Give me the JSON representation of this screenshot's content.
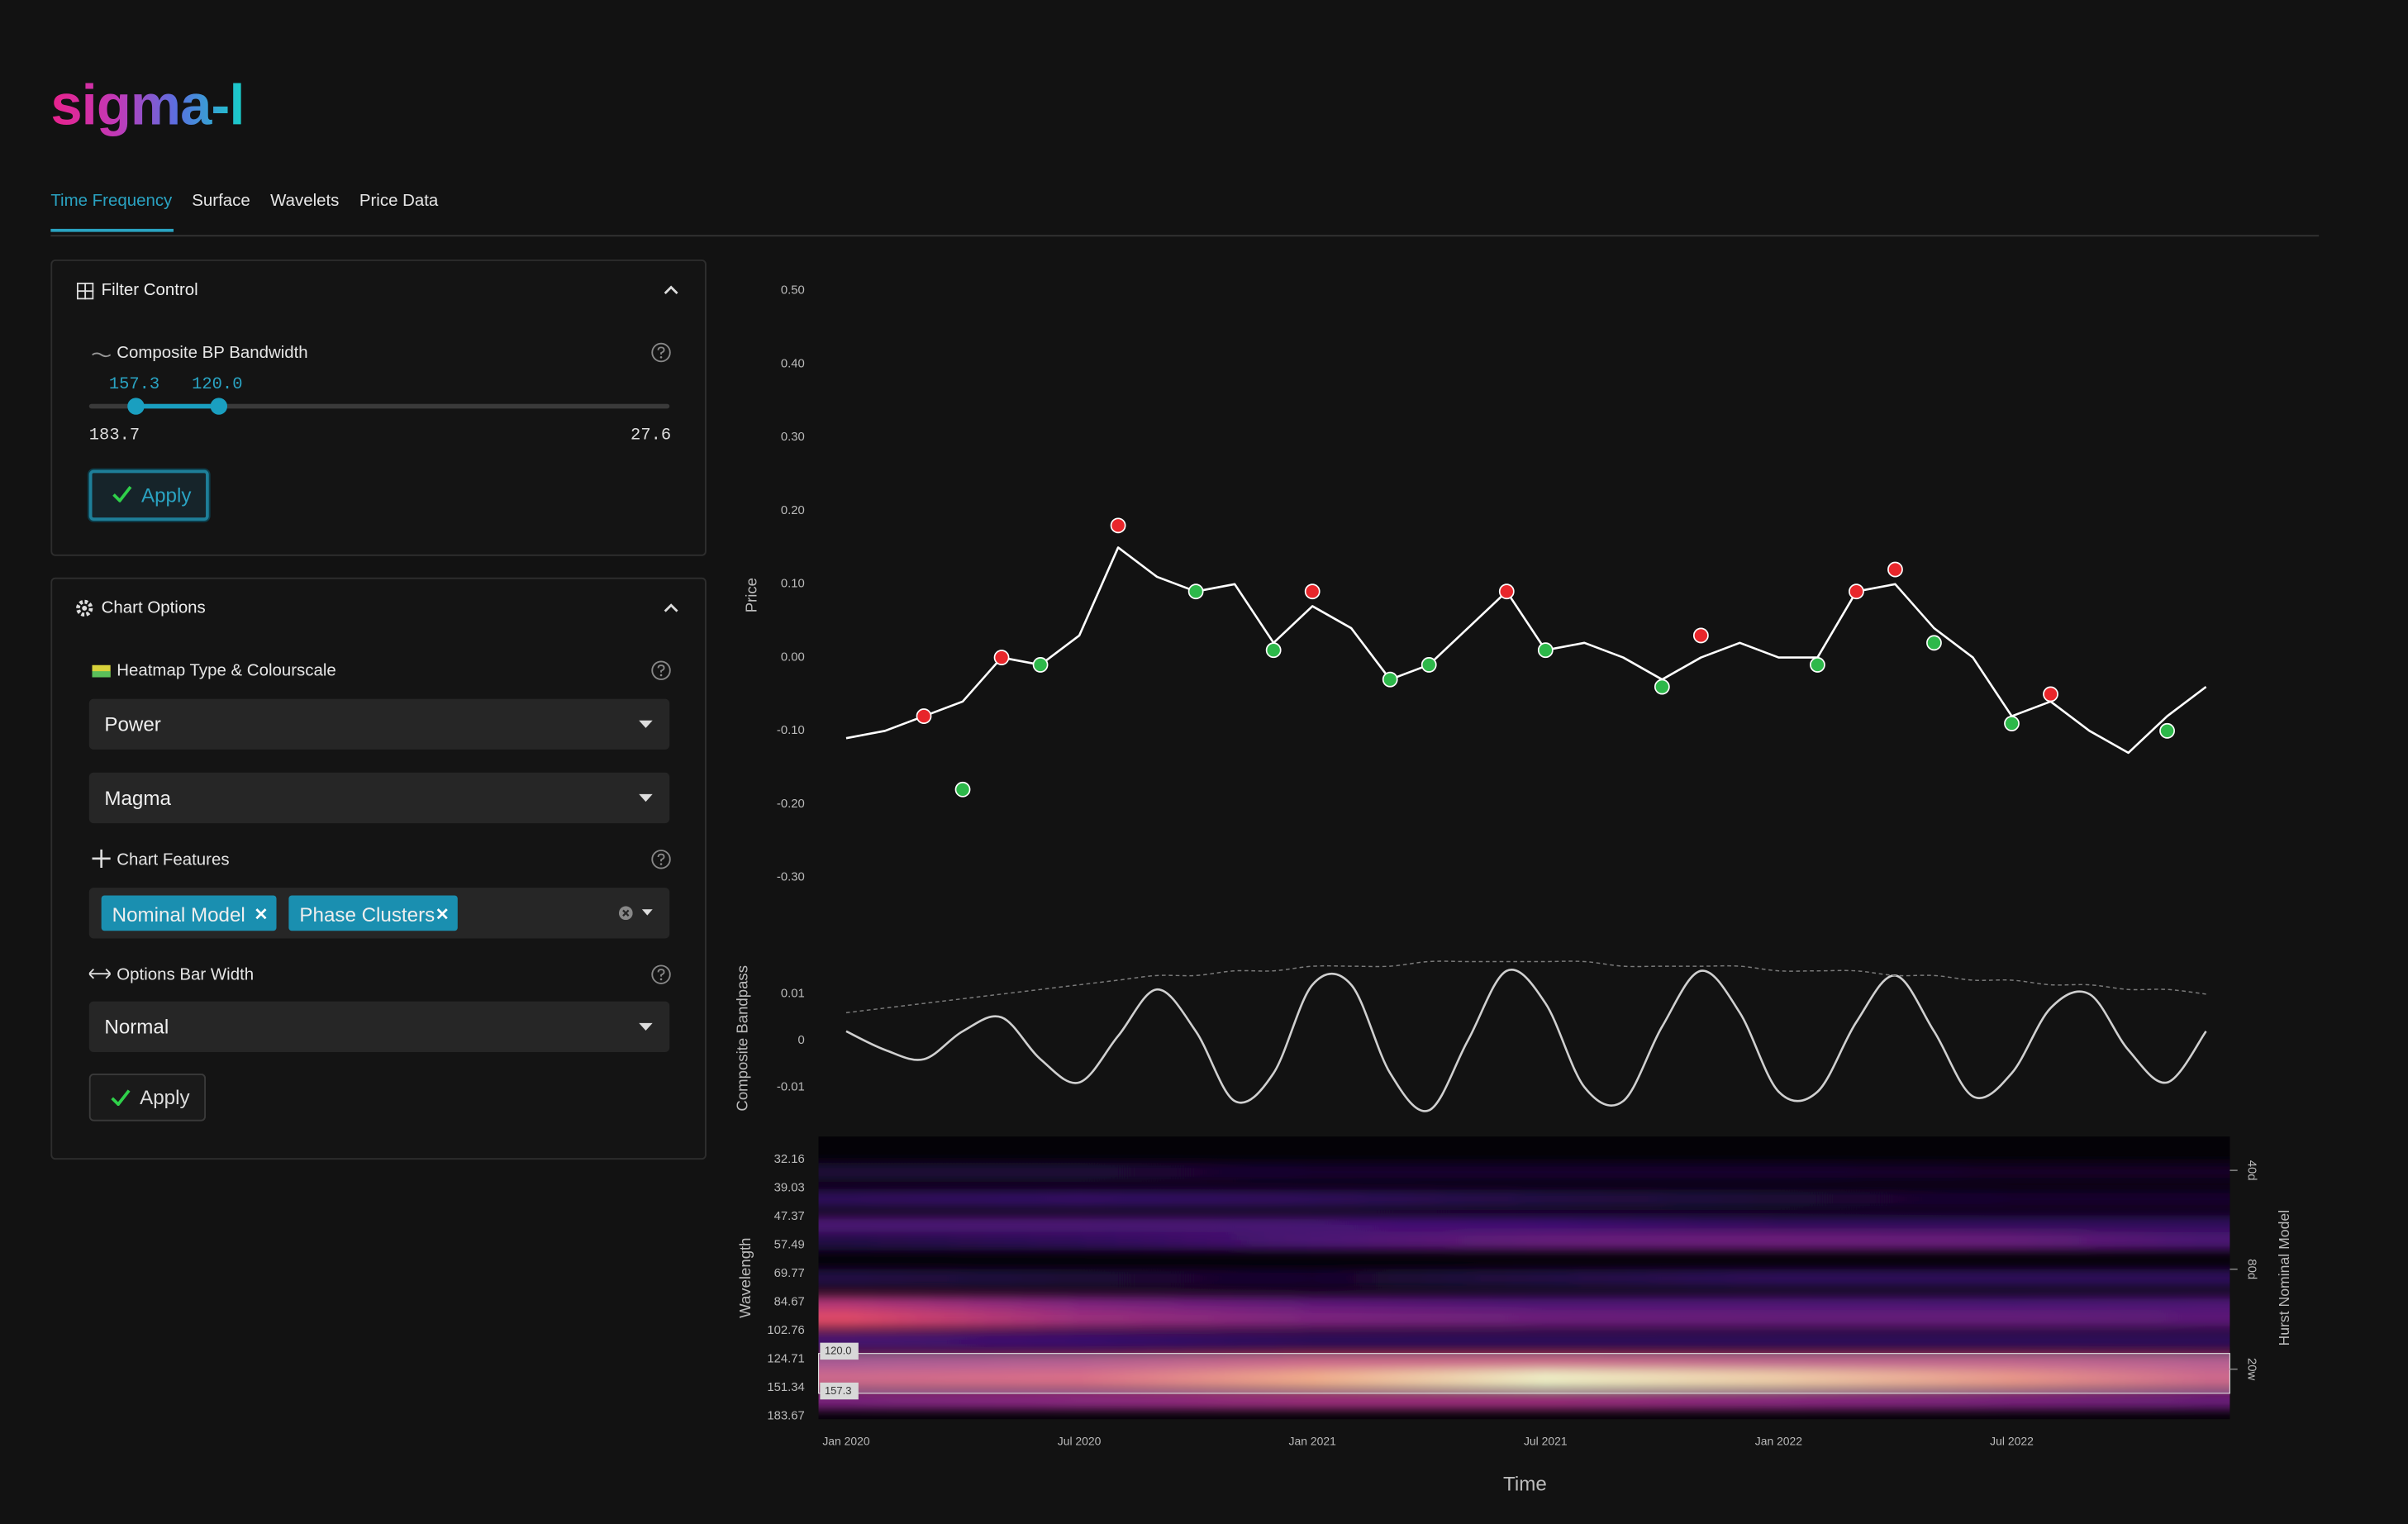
{
  "app": {
    "logo": "sigma-l",
    "tabs": [
      "Time Frequency",
      "Surface",
      "Wavelets",
      "Price Data"
    ],
    "active_tab": 0
  },
  "filter_control": {
    "title": "Filter Control",
    "field": "Composite BP Bandwidth",
    "range": [
      183.7,
      27.6
    ],
    "log_scale": true,
    "selected": [
      {
        "value": 157.3,
        "label": "157.3"
      },
      {
        "value": 120,
        "label": "120.0"
      }
    ],
    "button": "Apply"
  },
  "chart_options": {
    "title": "Chart Options",
    "heatmap_label": "Heatmap Type & Colourscale",
    "heatmap_type": "Power",
    "colourscale": "Magma",
    "features_label": "Chart Features",
    "features": [
      "Nominal Model",
      "Phase Clusters"
    ],
    "bar_width_label": "Options Bar Width",
    "bar_width": "Normal",
    "button": "Apply"
  },
  "chart_data": [
    {
      "type": "line",
      "ylabel": "Price",
      "x": [
        "2020-01",
        "2020-02",
        "2020-03",
        "2020-04",
        "2020-05",
        "2020-06",
        "2020-07",
        "2020-08",
        "2020-09",
        "2020-10",
        "2020-11",
        "2020-12",
        "2021-01",
        "2021-02",
        "2021-03",
        "2021-04",
        "2021-05",
        "2021-06",
        "2021-07",
        "2021-08",
        "2021-09",
        "2021-10",
        "2021-11",
        "2021-12",
        "2022-01",
        "2022-02",
        "2022-03",
        "2022-04",
        "2022-05",
        "2022-06",
        "2022-07",
        "2022-08",
        "2022-09",
        "2022-10",
        "2022-11",
        "2022-12"
      ],
      "values": [
        -0.11,
        -0.1,
        -0.08,
        -0.06,
        0.0,
        -0.01,
        0.03,
        0.15,
        0.11,
        0.09,
        0.1,
        0.02,
        0.07,
        0.04,
        -0.03,
        -0.01,
        0.04,
        0.09,
        0.01,
        0.02,
        0.0,
        -0.03,
        0.0,
        0.02,
        0.0,
        0.0,
        0.09,
        0.1,
        0.04,
        0.0,
        -0.08,
        -0.06,
        -0.1,
        -0.13,
        -0.08,
        -0.04
      ],
      "color": "#ffffff",
      "ylim": [
        -0.36,
        0.53
      ],
      "yticks": [
        {
          "value": 0.5,
          "label": "0.50"
        },
        {
          "value": 0.4,
          "label": "0.40"
        },
        {
          "value": 0.3,
          "label": "0.30"
        },
        {
          "value": 0.2,
          "label": "0.20"
        },
        {
          "value": 0.1,
          "label": "0.10"
        },
        {
          "value": 0,
          "label": "0.00"
        },
        {
          "value": -0.1,
          "label": "-0.10"
        },
        {
          "value": -0.2,
          "label": "-0.20"
        },
        {
          "value": -0.3,
          "label": "-0.30"
        }
      ],
      "peaks": {
        "x": [
          "2020-03",
          "2020-05",
          "2020-08",
          "2021-01",
          "2021-06",
          "2021-11",
          "2022-03",
          "2022-04",
          "2022-08"
        ],
        "values": [
          -0.08,
          0.0,
          0.18,
          0.09,
          0.09,
          0.03,
          0.09,
          0.12,
          -0.05
        ],
        "color": "#e8262b"
      },
      "troughs": {
        "x": [
          "2020-04",
          "2020-06",
          "2020-10",
          "2020-12",
          "2021-03",
          "2021-04",
          "2021-07",
          "2021-10",
          "2022-02",
          "2022-05",
          "2022-07",
          "2022-11"
        ],
        "values": [
          -0.18,
          -0.01,
          0.09,
          0.01,
          -0.03,
          -0.01,
          0.01,
          -0.04,
          -0.01,
          0.02,
          -0.09,
          -0.1
        ],
        "color": "#2db84a"
      }
    },
    {
      "type": "line",
      "ylabel": "Composite Bandpass",
      "smooth": true,
      "x": [
        "2020-01",
        "2020-02",
        "2020-03",
        "2020-04",
        "2020-05",
        "2020-06",
        "2020-07",
        "2020-08",
        "2020-09",
        "2020-10",
        "2020-11",
        "2020-12",
        "2021-01",
        "2021-02",
        "2021-03",
        "2021-04",
        "2021-05",
        "2021-06",
        "2021-07",
        "2021-08",
        "2021-09",
        "2021-10",
        "2021-11",
        "2021-12",
        "2022-01",
        "2022-02",
        "2022-03",
        "2022-04",
        "2022-05",
        "2022-06",
        "2022-07",
        "2022-08",
        "2022-09",
        "2022-10",
        "2022-11",
        "2022-12"
      ],
      "series": [
        {
          "color": "#d0d0d0",
          "values": [
            0.002,
            -0.002,
            -0.004,
            0.002,
            0.005,
            -0.004,
            -0.009,
            0.001,
            0.011,
            0.002,
            -0.013,
            -0.007,
            0.012,
            0.012,
            -0.007,
            -0.015,
            0,
            0.015,
            0.008,
            -0.01,
            -0.013,
            0.003,
            0.015,
            0.006,
            -0.011,
            -0.011,
            0.004,
            0.014,
            0.002,
            -0.012,
            -0.007,
            0.007,
            0.01,
            -0.002,
            -0.009,
            0.002
          ]
        },
        {
          "color": "#7a7a7a",
          "dashed": true,
          "values": [
            0.006,
            0.007,
            0.008,
            0.009,
            0.01,
            0.011,
            0.012,
            0.013,
            0.014,
            0.014,
            0.015,
            0.015,
            0.016,
            0.016,
            0.016,
            0.017,
            0.017,
            0.017,
            0.017,
            0.017,
            0.016,
            0.016,
            0.016,
            0.016,
            0.015,
            0.015,
            0.015,
            0.014,
            0.014,
            0.013,
            0.013,
            0.012,
            0.012,
            0.011,
            0.011,
            0.01
          ]
        }
      ],
      "ylim": [
        -0.018,
        0.019
      ],
      "yticks": [
        0.01,
        0,
        -0.01
      ]
    },
    {
      "type": "heatmap",
      "ylabel": "Wavelength",
      "xlabel": "Time",
      "colorscale": "magma",
      "x": [
        "2020-01",
        "2020-07",
        "2021-01",
        "2021-07",
        "2022-01",
        "2022-07",
        "2022-12"
      ],
      "xticks": [
        {
          "value": "2020-01",
          "label": "Jan 2020"
        },
        {
          "value": "2020-07",
          "label": "Jul 2020"
        },
        {
          "value": "2021-01",
          "label": "Jan 2021"
        },
        {
          "value": "2021-07",
          "label": "Jul 2021"
        },
        {
          "value": "2022-01",
          "label": "Jan 2022"
        },
        {
          "value": "2022-07",
          "label": "Jul 2022"
        }
      ],
      "ylim": [
        27.5,
        187.5
      ],
      "log_y": true,
      "y_reversed": true,
      "yticks": [
        32.16,
        39.03,
        47.37,
        57.49,
        69.77,
        84.67,
        102.76,
        124.71,
        151.34,
        183.67
      ],
      "bands": [
        {
          "wavelength": 35,
          "power": [
            0.12,
            0.12,
            0.1,
            0.1,
            0.1,
            0.08,
            0.08
          ]
        },
        {
          "wavelength": 42,
          "power": [
            0.2,
            0.22,
            0.2,
            0.15,
            0.12,
            0.1,
            0.1
          ]
        },
        {
          "wavelength": 50,
          "power": [
            0.3,
            0.3,
            0.28,
            0.25,
            0.2,
            0.2,
            0.2
          ]
        },
        {
          "wavelength": 56,
          "power": [
            0.15,
            0.2,
            0.3,
            0.38,
            0.4,
            0.38,
            0.3
          ]
        },
        {
          "wavelength": 72,
          "power": [
            0.15,
            0.12,
            0.1,
            0.15,
            0.2,
            0.2,
            0.2
          ]
        },
        {
          "wavelength": 86,
          "power": [
            0.6,
            0.45,
            0.35,
            0.3,
            0.3,
            0.28,
            0.3
          ]
        },
        {
          "wavelength": 95,
          "power": [
            0.75,
            0.55,
            0.45,
            0.4,
            0.38,
            0.38,
            0.35
          ]
        },
        {
          "wavelength": 110,
          "power": [
            0.3,
            0.25,
            0.2,
            0.2,
            0.2,
            0.2,
            0.2
          ]
        },
        {
          "wavelength": 128,
          "power": [
            0.55,
            0.6,
            0.7,
            0.7,
            0.65,
            0.65,
            0.6
          ]
        },
        {
          "wavelength": 143,
          "power": [
            0.7,
            0.75,
            0.9,
            1.0,
            0.95,
            0.85,
            0.7
          ]
        },
        {
          "wavelength": 165,
          "power": [
            0.45,
            0.5,
            0.55,
            0.55,
            0.5,
            0.45,
            0.4
          ]
        }
      ],
      "y2label": "Hurst Nominal Model",
      "y2lim": [
        27.5,
        187.5
      ],
      "y2ticks": [
        {
          "value": 34.6,
          "label": "40d"
        },
        {
          "value": 67.7,
          "label": "80d"
        },
        {
          "value": 133.5,
          "label": "20w"
        }
      ]
    }
  ]
}
